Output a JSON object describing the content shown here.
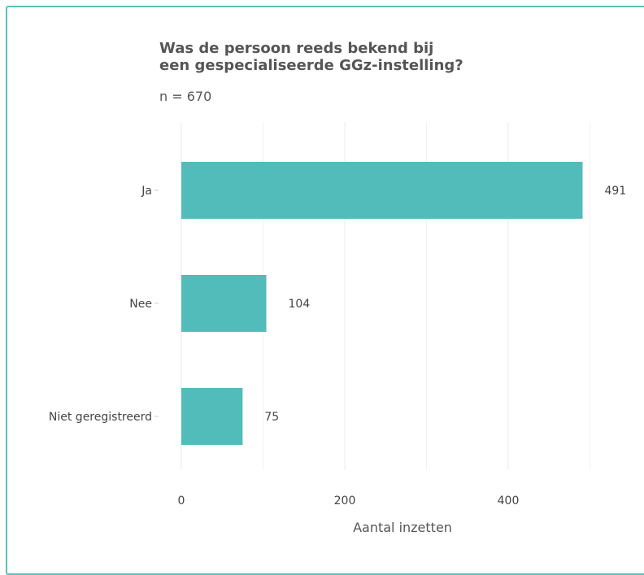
{
  "chart_data": {
    "type": "bar",
    "orientation": "horizontal",
    "title_lines": [
      "Was de persoon reeds bekend bij",
      "een gespecialiseerde GGz-instelling?"
    ],
    "subtitle": "n = 670",
    "categories": [
      "Ja",
      "Nee",
      "Niet geregistreerd"
    ],
    "values": [
      491,
      104,
      75
    ],
    "xlabel": "Aantal inzetten",
    "ylabel": "",
    "xlim": [
      0,
      550
    ],
    "x_ticks": [
      0,
      200,
      400
    ],
    "grid": true,
    "legend": "none",
    "bar_color": "#52bcba",
    "frame_color": "#5cbfbd"
  }
}
